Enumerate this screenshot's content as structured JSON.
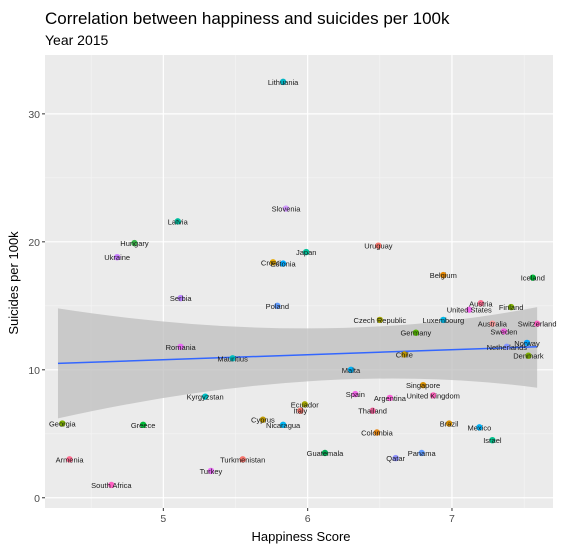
{
  "chart_data": {
    "type": "scatter",
    "title": "Correlation between happiness and suicides per 100k",
    "subtitle": "Year 2015",
    "xlabel": "Happiness Score",
    "ylabel": "Suicides per 100k",
    "xlim": [
      4.18,
      7.7
    ],
    "ylim": [
      -0.8,
      34.6
    ],
    "x_ticks": [
      5,
      6,
      7
    ],
    "y_ticks": [
      0,
      10,
      20,
      30
    ],
    "grid": true,
    "legend": "none",
    "trend": {
      "method": "linear",
      "x": [
        4.27,
        7.59
      ],
      "y": [
        10.5,
        11.8
      ],
      "ci_lower": [
        6.2,
        8.6
      ],
      "ci_upper": [
        14.8,
        14.9
      ],
      "color": "#3366ff",
      "band_color": "#bdbdbd"
    },
    "points": [
      {
        "name": "Lithuania",
        "x": 5.83,
        "y": 32.5,
        "color": "#00b4c4"
      },
      {
        "name": "Latvia",
        "x": 5.1,
        "y": 21.6,
        "color": "#00bfa0"
      },
      {
        "name": "Slovenia",
        "x": 5.85,
        "y": 22.6,
        "color": "#d39bff"
      },
      {
        "name": "Hungary",
        "x": 4.8,
        "y": 19.9,
        "color": "#39b54a"
      },
      {
        "name": "Ukraine",
        "x": 4.68,
        "y": 18.8,
        "color": "#c77cff"
      },
      {
        "name": "Japan",
        "x": 5.99,
        "y": 19.2,
        "color": "#00c19a"
      },
      {
        "name": "Croatia",
        "x": 5.76,
        "y": 18.4,
        "color": "#e6a800"
      },
      {
        "name": "Estonia",
        "x": 5.83,
        "y": 18.3,
        "color": "#00a9ff"
      },
      {
        "name": "Uruguay",
        "x": 6.49,
        "y": 19.7,
        "color": "#f8766d"
      },
      {
        "name": "Belgium",
        "x": 6.94,
        "y": 17.4,
        "color": "#e58700"
      },
      {
        "name": "Iceland",
        "x": 7.56,
        "y": 17.2,
        "color": "#00ba38"
      },
      {
        "name": "Serbia",
        "x": 5.12,
        "y": 15.6,
        "color": "#b983ff"
      },
      {
        "name": "Poland",
        "x": 5.79,
        "y": 15.0,
        "color": "#619cff"
      },
      {
        "name": "Austria",
        "x": 7.2,
        "y": 15.2,
        "color": "#ff6c91"
      },
      {
        "name": "United States",
        "x": 7.12,
        "y": 14.7,
        "color": "#ef67eb"
      },
      {
        "name": "Finland",
        "x": 7.41,
        "y": 14.9,
        "color": "#7cae00"
      },
      {
        "name": "Czech Republic",
        "x": 6.5,
        "y": 13.9,
        "color": "#a3a500"
      },
      {
        "name": "Luxembourg",
        "x": 6.94,
        "y": 13.9,
        "color": "#00b8e7"
      },
      {
        "name": "Australia",
        "x": 7.28,
        "y": 13.6,
        "color": "#ffa0a0"
      },
      {
        "name": "Switzerland",
        "x": 7.59,
        "y": 13.6,
        "color": "#ff61c3"
      },
      {
        "name": "Sweden",
        "x": 7.36,
        "y": 13.0,
        "color": "#f564e3"
      },
      {
        "name": "Germany",
        "x": 6.75,
        "y": 12.9,
        "color": "#53b400"
      },
      {
        "name": "Norway",
        "x": 7.52,
        "y": 12.1,
        "color": "#00a5ff"
      },
      {
        "name": "Netherlands",
        "x": 7.38,
        "y": 11.8,
        "color": "#8494ff"
      },
      {
        "name": "Denmark",
        "x": 7.53,
        "y": 11.1,
        "color": "#7cae00"
      },
      {
        "name": "Chile",
        "x": 6.67,
        "y": 11.2,
        "color": "#c49a00"
      },
      {
        "name": "Romania",
        "x": 5.12,
        "y": 11.8,
        "color": "#e76bf3"
      },
      {
        "name": "Mauritius",
        "x": 5.48,
        "y": 10.9,
        "color": "#00bfc4"
      },
      {
        "name": "Malta",
        "x": 6.3,
        "y": 10.0,
        "color": "#00b0f6"
      },
      {
        "name": "Singapore",
        "x": 6.8,
        "y": 8.8,
        "color": "#d89000"
      },
      {
        "name": "Spain",
        "x": 6.33,
        "y": 8.1,
        "color": "#f265e7"
      },
      {
        "name": "United Kingdom",
        "x": 6.87,
        "y": 8.0,
        "color": "#ff62bc"
      },
      {
        "name": "Argentina",
        "x": 6.57,
        "y": 7.8,
        "color": "#fb61d7"
      },
      {
        "name": "Kyrgyzstan",
        "x": 5.29,
        "y": 7.9,
        "color": "#00bfc4"
      },
      {
        "name": "Ecuador",
        "x": 5.98,
        "y": 7.3,
        "color": "#a3a500"
      },
      {
        "name": "Italy",
        "x": 5.95,
        "y": 6.8,
        "color": "#f8766d"
      },
      {
        "name": "Thailand",
        "x": 6.45,
        "y": 6.8,
        "color": "#ff67a4"
      },
      {
        "name": "Cyprus",
        "x": 5.69,
        "y": 6.1,
        "color": "#c09b00"
      },
      {
        "name": "Nicaragua",
        "x": 5.83,
        "y": 5.7,
        "color": "#00b4f0"
      },
      {
        "name": "Brazil",
        "x": 6.98,
        "y": 5.8,
        "color": "#d89000"
      },
      {
        "name": "Georgia",
        "x": 4.3,
        "y": 5.8,
        "color": "#7cae00"
      },
      {
        "name": "Greece",
        "x": 4.86,
        "y": 5.7,
        "color": "#00ba38"
      },
      {
        "name": "Mexico",
        "x": 7.19,
        "y": 5.5,
        "color": "#00b0f6"
      },
      {
        "name": "Colombia",
        "x": 6.48,
        "y": 5.1,
        "color": "#e68613"
      },
      {
        "name": "Israel",
        "x": 7.28,
        "y": 4.5,
        "color": "#00c08b"
      },
      {
        "name": "Guatemala",
        "x": 6.12,
        "y": 3.5,
        "color": "#00a651"
      },
      {
        "name": "Panama",
        "x": 6.79,
        "y": 3.5,
        "color": "#619cff"
      },
      {
        "name": "Qatar",
        "x": 6.61,
        "y": 3.1,
        "color": "#8f91ff"
      },
      {
        "name": "Armenia",
        "x": 4.35,
        "y": 3.0,
        "color": "#ff6c91"
      },
      {
        "name": "Turkmenistan",
        "x": 5.55,
        "y": 3.0,
        "color": "#f8766d"
      },
      {
        "name": "Turkey",
        "x": 5.33,
        "y": 2.1,
        "color": "#e76bf3"
      },
      {
        "name": "South Africa",
        "x": 4.64,
        "y": 1.0,
        "color": "#ff61c3"
      }
    ]
  }
}
